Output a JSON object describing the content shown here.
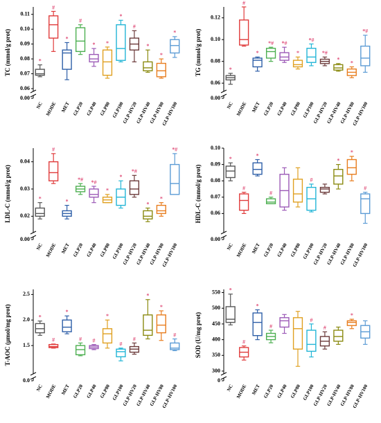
{
  "chart_data": [
    {
      "type": "box",
      "ylabel": "TC (mmol/g prot)",
      "axis_break": true,
      "categories": [
        "NC",
        "MODE",
        "MET",
        "GLP20",
        "GLP40",
        "GLP80",
        "GLP100",
        "GLP-HV20",
        "GLP-HV40",
        "GLP-HV80",
        "GLP-HV100"
      ],
      "colors": [
        "#555555",
        "#e03b3b",
        "#2e5fa8",
        "#4caf50",
        "#9b59b6",
        "#e0a020",
        "#22b5d6",
        "#6b3a3a",
        "#8a8a10",
        "#e87d1e",
        "#5b9bd5"
      ],
      "marker_color": "#e0507a",
      "ylim": [
        0.06,
        0.115
      ],
      "yticks": [
        {
          "value": 0,
          "label": "0.00"
        },
        {
          "value": 0.06,
          "label": "0.06"
        },
        {
          "value": 0.07,
          "label": "0.07"
        },
        {
          "value": 0.08,
          "label": "0.08"
        },
        {
          "value": 0.09,
          "label": "0.09"
        },
        {
          "value": 0.1,
          "label": "0.10"
        },
        {
          "value": 0.11,
          "label": "0.11"
        }
      ],
      "boxes": [
        {
          "min": 0.068,
          "q1": 0.069,
          "median": 0.07,
          "q3": 0.073,
          "max": 0.076
        },
        {
          "min": 0.085,
          "q1": 0.094,
          "median": 0.103,
          "q3": 0.109,
          "max": 0.112
        },
        {
          "min": 0.066,
          "q1": 0.073,
          "median": 0.084,
          "q3": 0.086,
          "max": 0.091
        },
        {
          "min": 0.083,
          "q1": 0.085,
          "median": 0.092,
          "q3": 0.101,
          "max": 0.103
        },
        {
          "min": 0.075,
          "q1": 0.078,
          "median": 0.08,
          "q3": 0.083,
          "max": 0.087
        },
        {
          "min": 0.067,
          "q1": 0.069,
          "median": 0.078,
          "q3": 0.086,
          "max": 0.088
        },
        {
          "min": 0.078,
          "q1": 0.079,
          "median": 0.087,
          "q3": 0.103,
          "max": 0.106
        },
        {
          "min": 0.078,
          "q1": 0.086,
          "median": 0.09,
          "q3": 0.094,
          "max": 0.099
        },
        {
          "min": 0.071,
          "q1": 0.072,
          "median": 0.074,
          "q3": 0.078,
          "max": 0.086
        },
        {
          "min": 0.067,
          "q1": 0.068,
          "median": 0.072,
          "q3": 0.077,
          "max": 0.08
        },
        {
          "min": 0.081,
          "q1": 0.084,
          "median": 0.089,
          "q3": 0.093,
          "max": 0.095
        }
      ],
      "marks": [
        "*",
        "#",
        "*",
        "#",
        "*",
        "*",
        "*",
        "#",
        "*",
        "*",
        "*"
      ]
    },
    {
      "type": "box",
      "ylabel": "TG (mmol/g prot)",
      "axis_break": true,
      "categories": [
        "NC",
        "MODE",
        "MET",
        "GLP20",
        "GLP40",
        "GLP80",
        "GLP100",
        "GLP-HV20",
        "GLP-HV40",
        "GLP-HV80",
        "GLP-HV100"
      ],
      "colors": [
        "#555555",
        "#e03b3b",
        "#2e5fa8",
        "#4caf50",
        "#9b59b6",
        "#e0a020",
        "#22b5d6",
        "#6b3a3a",
        "#8a8a10",
        "#e87d1e",
        "#5b9bd5"
      ],
      "marker_color": "#e0507a",
      "ylim": [
        0.055,
        0.13
      ],
      "yticks": [
        {
          "value": 0,
          "label": "0.00"
        },
        {
          "value": 0.06,
          "label": "0.06"
        },
        {
          "value": 0.08,
          "label": "0.08"
        },
        {
          "value": 0.1,
          "label": "0.10"
        },
        {
          "value": 0.12,
          "label": "0.12"
        }
      ],
      "boxes": [
        {
          "min": 0.059,
          "q1": 0.063,
          "median": 0.065,
          "q3": 0.067,
          "max": 0.069
        },
        {
          "min": 0.094,
          "q1": 0.095,
          "median": 0.1,
          "q3": 0.118,
          "max": 0.13
        },
        {
          "min": 0.071,
          "q1": 0.075,
          "median": 0.081,
          "q3": 0.083,
          "max": 0.084
        },
        {
          "min": 0.08,
          "q1": 0.083,
          "median": 0.089,
          "q3": 0.092,
          "max": 0.093
        },
        {
          "min": 0.079,
          "q1": 0.081,
          "median": 0.084,
          "q3": 0.088,
          "max": 0.093
        },
        {
          "min": 0.073,
          "q1": 0.075,
          "median": 0.077,
          "q3": 0.081,
          "max": 0.084
        },
        {
          "min": 0.076,
          "q1": 0.079,
          "median": 0.084,
          "q3": 0.092,
          "max": 0.096
        },
        {
          "min": 0.076,
          "q1": 0.078,
          "median": 0.08,
          "q3": 0.082,
          "max": 0.084
        },
        {
          "min": 0.071,
          "q1": 0.072,
          "median": 0.074,
          "q3": 0.077,
          "max": 0.078
        },
        {
          "min": 0.065,
          "q1": 0.067,
          "median": 0.07,
          "q3": 0.073,
          "max": 0.075
        },
        {
          "min": 0.07,
          "q1": 0.076,
          "median": 0.083,
          "q3": 0.094,
          "max": 0.104
        }
      ],
      "marks": [
        "*",
        "#",
        "*",
        "*#",
        "*#",
        "*",
        "*#",
        "*#",
        "*",
        "*",
        "*#"
      ]
    },
    {
      "type": "box",
      "ylabel": "LDL-C (mmol/g prot)",
      "axis_break": true,
      "categories": [
        "NC",
        "MODE",
        "MET",
        "GLP20",
        "GLP40",
        "GLP80",
        "GLP100",
        "GLP-HV20",
        "GLP-HV40",
        "GLP-HV80",
        "GLP-HV100"
      ],
      "colors": [
        "#555555",
        "#e03b3b",
        "#2e5fa8",
        "#4caf50",
        "#9b59b6",
        "#e0a020",
        "#22b5d6",
        "#6b3a3a",
        "#8a8a10",
        "#e87d1e",
        "#5b9bd5"
      ],
      "marker_color": "#e0507a",
      "ylim": [
        0.015,
        0.045
      ],
      "yticks": [
        {
          "value": 0,
          "label": "0.00"
        },
        {
          "value": 0.02,
          "label": "0.02"
        },
        {
          "value": 0.03,
          "label": "0.03"
        },
        {
          "value": 0.04,
          "label": "0.04"
        }
      ],
      "boxes": [
        {
          "min": 0.019,
          "q1": 0.02,
          "median": 0.021,
          "q3": 0.023,
          "max": 0.025
        },
        {
          "min": 0.032,
          "q1": 0.033,
          "median": 0.036,
          "q3": 0.04,
          "max": 0.043
        },
        {
          "min": 0.019,
          "q1": 0.02,
          "median": 0.021,
          "q3": 0.022,
          "max": 0.024
        },
        {
          "min": 0.028,
          "q1": 0.029,
          "median": 0.03,
          "q3": 0.031,
          "max": 0.032
        },
        {
          "min": 0.025,
          "q1": 0.027,
          "median": 0.028,
          "q3": 0.03,
          "max": 0.031
        },
        {
          "min": 0.025,
          "q1": 0.025,
          "median": 0.026,
          "q3": 0.027,
          "max": 0.028
        },
        {
          "min": 0.023,
          "q1": 0.024,
          "median": 0.027,
          "q3": 0.03,
          "max": 0.033
        },
        {
          "min": 0.027,
          "q1": 0.028,
          "median": 0.03,
          "q3": 0.033,
          "max": 0.035
        },
        {
          "min": 0.018,
          "q1": 0.019,
          "median": 0.02,
          "q3": 0.022,
          "max": 0.023
        },
        {
          "min": 0.02,
          "q1": 0.021,
          "median": 0.022,
          "q3": 0.024,
          "max": 0.025
        },
        {
          "min": 0.028,
          "q1": 0.028,
          "median": 0.032,
          "q3": 0.039,
          "max": 0.043
        }
      ],
      "marks": [
        "*",
        "#",
        "*",
        "*#",
        "*#",
        "*",
        "*",
        "*#",
        "*",
        "*",
        "*#"
      ]
    },
    {
      "type": "box",
      "ylabel": "HDL-C (mmol/g prot)",
      "axis_break": true,
      "categories": [
        "NC",
        "MODE",
        "MET",
        "GLP20",
        "GLP40",
        "GLP80",
        "GLP100",
        "GLP-HV20",
        "GLP-HV40",
        "GLP-HV80",
        "GLP-HV100"
      ],
      "colors": [
        "#555555",
        "#e03b3b",
        "#2e5fa8",
        "#4caf50",
        "#9b59b6",
        "#e0a020",
        "#22b5d6",
        "#6b3a3a",
        "#8a8a10",
        "#e87d1e",
        "#5b9bd5"
      ],
      "marker_color": "#e0507a",
      "ylim": [
        0.05,
        0.1
      ],
      "yticks": [
        {
          "value": 0,
          "label": "0.00"
        },
        {
          "value": 0.06,
          "label": "0.06"
        },
        {
          "value": 0.07,
          "label": "0.07"
        },
        {
          "value": 0.08,
          "label": "0.08"
        },
        {
          "value": 0.09,
          "label": "0.09"
        },
        {
          "value": 0.1,
          "label": "0.10"
        }
      ],
      "boxes": [
        {
          "min": 0.08,
          "q1": 0.082,
          "median": 0.086,
          "q3": 0.089,
          "max": 0.091
        },
        {
          "min": 0.06,
          "q1": 0.062,
          "median": 0.068,
          "q3": 0.072,
          "max": 0.073
        },
        {
          "min": 0.083,
          "q1": 0.084,
          "median": 0.087,
          "q3": 0.091,
          "max": 0.093
        },
        {
          "min": 0.066,
          "q1": 0.066,
          "median": 0.067,
          "q3": 0.069,
          "max": 0.07
        },
        {
          "min": 0.062,
          "q1": 0.064,
          "median": 0.074,
          "q3": 0.084,
          "max": 0.088
        },
        {
          "min": 0.064,
          "q1": 0.067,
          "median": 0.072,
          "q3": 0.081,
          "max": 0.088
        },
        {
          "min": 0.061,
          "q1": 0.062,
          "median": 0.069,
          "q3": 0.076,
          "max": 0.078
        },
        {
          "min": 0.072,
          "q1": 0.073,
          "median": 0.075,
          "q3": 0.076,
          "max": 0.078
        },
        {
          "min": 0.075,
          "q1": 0.078,
          "median": 0.083,
          "q3": 0.087,
          "max": 0.09
        },
        {
          "min": 0.08,
          "q1": 0.084,
          "median": 0.088,
          "q3": 0.093,
          "max": 0.095
        },
        {
          "min": 0.054,
          "q1": 0.06,
          "median": 0.069,
          "q3": 0.072,
          "max": 0.073
        }
      ],
      "marks": [
        "*",
        "#",
        "*",
        "#",
        null,
        null,
        "#",
        null,
        "*",
        "*",
        "#"
      ]
    },
    {
      "type": "box",
      "ylabel": "T-AOC (μmol/mg prot)",
      "axis_break": true,
      "categories": [
        "NC",
        "MODE",
        "MET",
        "GLP20",
        "GLP40",
        "GLP80",
        "GLP100",
        "GLP-HV20",
        "GLP-HV40",
        "GLP-HV80",
        "GLP-HV100"
      ],
      "colors": [
        "#555555",
        "#e03b3b",
        "#2e5fa8",
        "#4caf50",
        "#9b59b6",
        "#e0a020",
        "#22b5d6",
        "#6b3a3a",
        "#8a8a10",
        "#e87d1e",
        "#5b9bd5"
      ],
      "marker_color": "#e0507a",
      "ylim": [
        1.0,
        2.6
      ],
      "yticks": [
        {
          "value": 0,
          "label": "0.0"
        },
        1.5,
        {
          "value": 2,
          "label": "2.0"
        },
        2.5
      ],
      "boxes": [
        {
          "min": 1.7,
          "q1": 1.75,
          "median": 1.83,
          "q3": 1.93,
          "max": 1.98
        },
        {
          "min": 1.45,
          "q1": 1.46,
          "median": 1.48,
          "q3": 1.52,
          "max": 1.53
        },
        {
          "min": 1.73,
          "q1": 1.77,
          "median": 1.86,
          "q3": 2.0,
          "max": 2.08
        },
        {
          "min": 1.3,
          "q1": 1.32,
          "median": 1.42,
          "q3": 1.5,
          "max": 1.55
        },
        {
          "min": 1.42,
          "q1": 1.44,
          "median": 1.47,
          "q3": 1.5,
          "max": 1.52
        },
        {
          "min": 1.45,
          "q1": 1.55,
          "median": 1.73,
          "q3": 1.83,
          "max": 2.0
        },
        {
          "min": 1.2,
          "q1": 1.28,
          "median": 1.38,
          "q3": 1.43,
          "max": 1.45
        },
        {
          "min": 1.33,
          "q1": 1.37,
          "median": 1.43,
          "q3": 1.48,
          "max": 1.55
        },
        {
          "min": 1.63,
          "q1": 1.7,
          "median": 1.8,
          "q3": 2.1,
          "max": 2.4
        },
        {
          "min": 1.6,
          "q1": 1.75,
          "median": 1.9,
          "q3": 2.1,
          "max": 2.18
        },
        {
          "min": 1.4,
          "q1": 1.42,
          "median": 1.45,
          "q3": 1.55,
          "max": 1.63
        }
      ],
      "marks": [
        "*",
        "#",
        "*",
        "#",
        "#",
        "*",
        "#",
        "#",
        "*",
        "*",
        "#"
      ]
    },
    {
      "type": "box",
      "ylabel": "SOD (U/mg prot)",
      "axis_break": true,
      "categories": [
        "NC",
        "MODE",
        "MET",
        "GLP20",
        "GLP40",
        "GLP80",
        "GLP100",
        "GLP-HV20",
        "GLP-HV40",
        "GLP-HV80",
        "GLP-HV100"
      ],
      "colors": [
        "#555555",
        "#e03b3b",
        "#2e5fa8",
        "#4caf50",
        "#9b59b6",
        "#e0a020",
        "#22b5d6",
        "#6b3a3a",
        "#8a8a10",
        "#e87d1e",
        "#5b9bd5"
      ],
      "marker_color": "#e0507a",
      "ylim": [
        300,
        560
      ],
      "yticks": [
        0,
        300,
        350,
        400,
        450,
        500,
        550
      ],
      "boxes": [
        {
          "min": 447,
          "q1": 455,
          "median": 465,
          "q3": 505,
          "max": 545
        },
        {
          "min": 335,
          "q1": 345,
          "median": 360,
          "q3": 375,
          "max": 380
        },
        {
          "min": 400,
          "q1": 413,
          "median": 455,
          "q3": 485,
          "max": 495
        },
        {
          "min": 390,
          "q1": 400,
          "median": 410,
          "q3": 420,
          "max": 430
        },
        {
          "min": 420,
          "q1": 440,
          "median": 460,
          "q3": 470,
          "max": 480
        },
        {
          "min": 315,
          "q1": 370,
          "median": 435,
          "q3": 470,
          "max": 490
        },
        {
          "min": 345,
          "q1": 363,
          "median": 385,
          "q3": 430,
          "max": 450
        },
        {
          "min": 370,
          "q1": 380,
          "median": 395,
          "q3": 410,
          "max": 425
        },
        {
          "min": 385,
          "q1": 395,
          "median": 410,
          "q3": 430,
          "max": 440
        },
        {
          "min": 435,
          "q1": 445,
          "median": 455,
          "q3": 460,
          "max": 465
        },
        {
          "min": 385,
          "q1": 405,
          "median": 425,
          "q3": 445,
          "max": 460
        }
      ],
      "marks": [
        "*",
        "#",
        "*",
        "#",
        null,
        null,
        "#",
        "#",
        null,
        "*",
        null
      ]
    }
  ]
}
